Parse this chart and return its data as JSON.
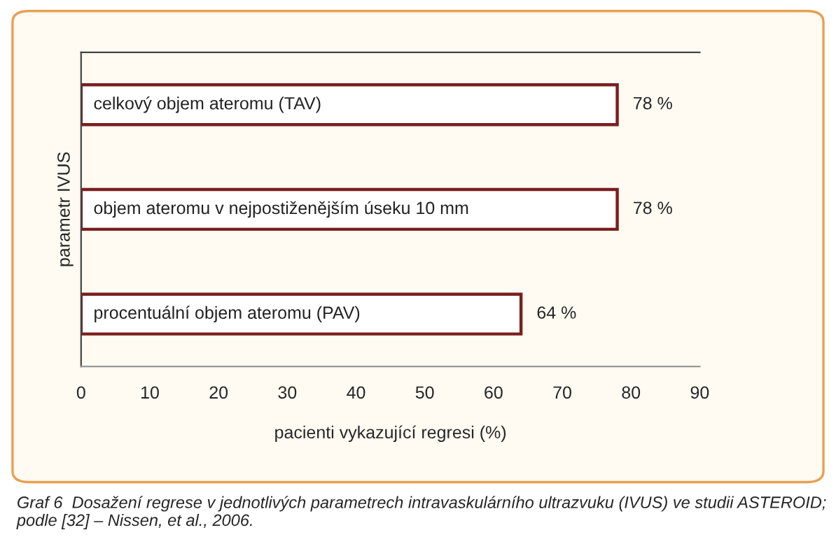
{
  "chart_data": {
    "type": "bar",
    "orientation": "horizontal",
    "categories": [
      "celkový objem ateromu (TAV)",
      "objem ateromu v nejpostiženějším úseku 10 mm",
      "procentuální objem ateromu (PAV)"
    ],
    "values": [
      78,
      78,
      64
    ],
    "value_labels": [
      "78 %",
      "78 %",
      "64 %"
    ],
    "color": "#ffffff",
    "xlim": [
      0,
      90
    ],
    "xticks": [
      0,
      10,
      20,
      30,
      40,
      50,
      60,
      70,
      80,
      90
    ],
    "xlabel": "pacienti vykazující regresi (%)",
    "ylabel": "parametr IVUS",
    "grid": false,
    "legend": false,
    "annotations": [
      "Graf 6  Dosažení regrese v jednotlivých parametrech intravaskulárního ultrazvuku (IVUS) ve studii ASTEROID; podle [32] – Nissen, et al., 2006."
    ]
  }
}
